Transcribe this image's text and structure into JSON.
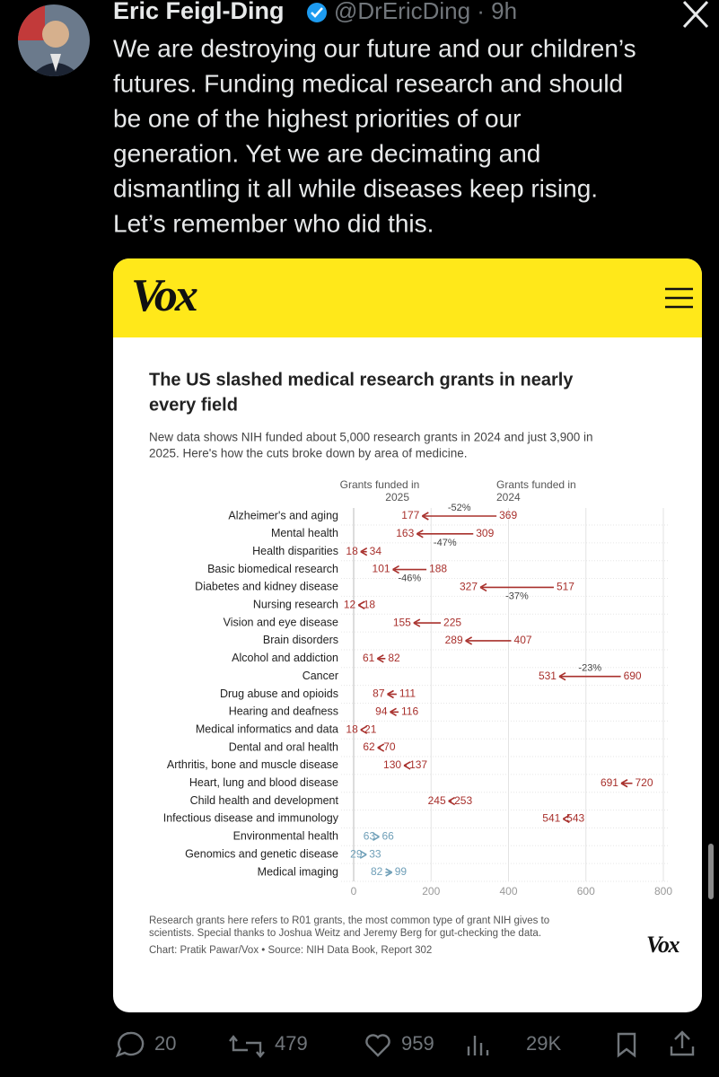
{
  "tweet": {
    "name": "Eric Feigl-Ding",
    "handle": "@DrEricDing · 9h",
    "text_lines": [
      "We are destroying our future and our children’s",
      "futures. Funding medical research and should",
      "be one of the highest priorities of our",
      "generation. Yet we are decimating and",
      "dismantling it all while diseases keep rising.",
      "Let’s remember who did this."
    ],
    "stats": {
      "replies": 20,
      "reposts": 479,
      "likes": 959,
      "views": "29K"
    }
  },
  "card": {
    "brand": "Vox",
    "chart": {
      "type": "arrow",
      "title_lines": [
        "The US slashed medical research grants in nearly",
        "every field"
      ],
      "subtitle_lines": [
        "New data shows NIH funded about 5,000 research grants in 2024 and just 3,900 in",
        "2025. Here's how the cuts broke down by area of medicine."
      ],
      "categories": [
        "Alzheimer's and aging",
        "Mental health",
        "Health disparities",
        "Basic biomedical research",
        "Diabetes and kidney disease",
        "Nursing research",
        "Vision and eye disease",
        "Brain disorders",
        "Alcohol and addiction",
        "Cancer",
        "Drug abuse and opioids",
        "Hearing and deafness",
        "Medical informatics and data",
        "Dental and oral health",
        "Arthritis, bone and muscle disease",
        "Heart, lung and blood disease",
        "Child health and development",
        "Infectious disease and immunology",
        "Environmental health",
        "Genomics and genetic disease",
        "Medical imaging"
      ],
      "series": [
        {
          "name_lines": [
            "Grants funded in",
            "2025"
          ],
          "values": [
            177,
            163,
            18,
            101,
            327,
            12,
            155,
            289,
            61,
            531,
            87,
            94,
            18,
            62,
            130,
            691,
            245,
            541,
            66,
            33,
            99
          ]
        },
        {
          "name_lines": [
            "Grants funded in",
            "2024"
          ],
          "values": [
            369,
            309,
            34,
            188,
            517,
            18,
            225,
            407,
            82,
            690,
            111,
            116,
            21,
            70,
            137,
            720,
            253,
            543,
            63,
            29,
            82
          ]
        }
      ],
      "change_labels": [
        "-52%",
        "-47%",
        null,
        "-46%",
        "-37%",
        null,
        null,
        null,
        null,
        "-23%",
        null,
        null,
        null,
        null,
        null,
        null,
        null,
        null,
        null,
        null,
        null
      ],
      "decrease_color": "#a8302c",
      "increase_color": "#6f9fb8",
      "xlim": [
        0,
        800
      ],
      "xticks": [
        0,
        200,
        400,
        600,
        800
      ],
      "grid": true,
      "notes": [
        "Research grants here refers to R01 grants, the most common type of grant NIH gives to",
        "scientists. Special thanks to Joshua Weitz and Jeremy Berg for gut-checking the data."
      ],
      "credit": "Chart: Pratik Pawar/Vox • Source: NIH Data Book, Report 302",
      "logo": "Vox"
    }
  }
}
